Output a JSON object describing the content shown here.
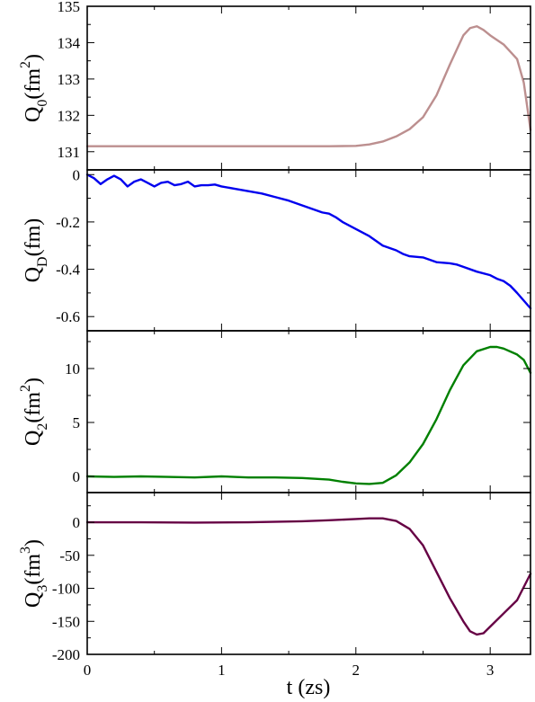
{
  "chart_data": [
    {
      "type": "line",
      "ylabel": {
        "main": "Q",
        "sub": "0",
        "mid": "(fm",
        "sup": "2",
        "end": ")"
      },
      "xlim": [
        0,
        3.3
      ],
      "ylim": [
        130.5,
        135
      ],
      "yticks_major": [
        131,
        132,
        133,
        134,
        135
      ],
      "yticks_minor": [
        130.5,
        131.5,
        132.5,
        133.5,
        134.5
      ],
      "ytick_labels": [
        "131",
        "132",
        "133",
        "134",
        "135"
      ],
      "series": [
        {
          "color": "#bc8f8f",
          "x": [
            0,
            0.2,
            0.4,
            0.6,
            0.8,
            1.0,
            1.2,
            1.4,
            1.6,
            1.8,
            2.0,
            2.1,
            2.2,
            2.3,
            2.4,
            2.5,
            2.6,
            2.7,
            2.8,
            2.85,
            2.9,
            2.95,
            3.0,
            3.1,
            3.2,
            3.25,
            3.3
          ],
          "y": [
            131.15,
            131.15,
            131.15,
            131.15,
            131.15,
            131.15,
            131.15,
            131.15,
            131.15,
            131.15,
            131.16,
            131.2,
            131.28,
            131.42,
            131.62,
            131.95,
            132.55,
            133.4,
            134.2,
            134.4,
            134.45,
            134.35,
            134.2,
            133.95,
            133.55,
            132.9,
            131.6
          ]
        }
      ]
    },
    {
      "type": "line",
      "ylabel": {
        "main": "Q",
        "sub": "D",
        "mid": "(fm)",
        "sup": "",
        "end": ""
      },
      "xlim": [
        0,
        3.3
      ],
      "ylim": [
        -0.66,
        0.02
      ],
      "yticks_major": [
        0,
        -0.2,
        -0.4,
        -0.6
      ],
      "yticks_minor": [
        -0.1,
        -0.3,
        -0.5
      ],
      "ytick_labels": [
        "0",
        "-0.2",
        "-0.4",
        "-0.6"
      ],
      "series": [
        {
          "color": "#0000ee",
          "x": [
            0,
            0.05,
            0.1,
            0.15,
            0.2,
            0.25,
            0.3,
            0.35,
            0.4,
            0.45,
            0.5,
            0.55,
            0.6,
            0.65,
            0.7,
            0.75,
            0.8,
            0.85,
            0.9,
            0.95,
            1.0,
            1.1,
            1.2,
            1.3,
            1.4,
            1.5,
            1.6,
            1.7,
            1.75,
            1.8,
            1.85,
            1.9,
            2.0,
            2.1,
            2.15,
            2.2,
            2.3,
            2.35,
            2.4,
            2.5,
            2.55,
            2.6,
            2.7,
            2.75,
            2.8,
            2.9,
            3.0,
            3.05,
            3.1,
            3.15,
            3.2,
            3.3
          ],
          "y": [
            0,
            -0.015,
            -0.04,
            -0.02,
            -0.005,
            -0.02,
            -0.05,
            -0.03,
            -0.02,
            -0.035,
            -0.05,
            -0.035,
            -0.03,
            -0.045,
            -0.04,
            -0.03,
            -0.05,
            -0.045,
            -0.045,
            -0.042,
            -0.05,
            -0.06,
            -0.07,
            -0.08,
            -0.095,
            -0.11,
            -0.13,
            -0.15,
            -0.16,
            -0.165,
            -0.18,
            -0.2,
            -0.23,
            -0.26,
            -0.28,
            -0.3,
            -0.32,
            -0.335,
            -0.345,
            -0.35,
            -0.36,
            -0.37,
            -0.375,
            -0.38,
            -0.39,
            -0.41,
            -0.425,
            -0.44,
            -0.45,
            -0.47,
            -0.5,
            -0.565
          ]
        }
      ]
    },
    {
      "type": "line",
      "ylabel": {
        "main": "Q",
        "sub": "2",
        "mid": "(fm",
        "sup": "2",
        "end": ")"
      },
      "xlim": [
        0,
        3.3
      ],
      "ylim": [
        -1.5,
        13.5
      ],
      "yticks_major": [
        0,
        5,
        10
      ],
      "yticks_minor": [
        2.5,
        7.5,
        12.5
      ],
      "ytick_labels": [
        "0",
        "5",
        "10"
      ],
      "series": [
        {
          "color": "#008000",
          "x": [
            0,
            0.2,
            0.4,
            0.6,
            0.8,
            1.0,
            1.2,
            1.4,
            1.6,
            1.8,
            1.9,
            2.0,
            2.1,
            2.2,
            2.3,
            2.4,
            2.5,
            2.6,
            2.7,
            2.8,
            2.9,
            3.0,
            3.05,
            3.1,
            3.2,
            3.25,
            3.3
          ],
          "y": [
            0,
            -0.05,
            0,
            -0.05,
            -0.1,
            0,
            -0.1,
            -0.1,
            -0.15,
            -0.3,
            -0.5,
            -0.65,
            -0.7,
            -0.6,
            0.1,
            1.3,
            3.0,
            5.3,
            8.0,
            10.3,
            11.6,
            12.0,
            12.0,
            11.85,
            11.3,
            10.8,
            9.6
          ]
        }
      ]
    },
    {
      "type": "line",
      "ylabel": {
        "main": "Q",
        "sub": "3",
        "mid": "(fm",
        "sup": "3",
        "end": ")"
      },
      "xlim": [
        0,
        3.3
      ],
      "xlabel": "t (zs)",
      "xticks_major": [
        0,
        1,
        2,
        3
      ],
      "xticks_minor": [
        0.5,
        1.5,
        2.5
      ],
      "xtick_labels": [
        "0",
        "1",
        "2",
        "3"
      ],
      "ylim": [
        -200,
        45
      ],
      "yticks_major": [
        0,
        -50,
        -100,
        -150,
        -200
      ],
      "yticks_minor": [
        25,
        -25,
        -75,
        -125,
        -175
      ],
      "ytick_labels": [
        "0",
        "-50",
        "-100",
        "-150",
        "-200"
      ],
      "series": [
        {
          "color": "#660044",
          "x": [
            0,
            0.4,
            0.8,
            1.2,
            1.6,
            1.8,
            2.0,
            2.1,
            2.2,
            2.3,
            2.4,
            2.5,
            2.6,
            2.7,
            2.8,
            2.85,
            2.9,
            2.95,
            3.0,
            3.1,
            3.2,
            3.3
          ],
          "y": [
            0,
            0,
            -0.5,
            0,
            1.5,
            3,
            5,
            6,
            6,
            2,
            -10,
            -35,
            -75,
            -115,
            -150,
            -165,
            -170,
            -168,
            -158,
            -138,
            -118,
            -78
          ]
        }
      ]
    }
  ]
}
